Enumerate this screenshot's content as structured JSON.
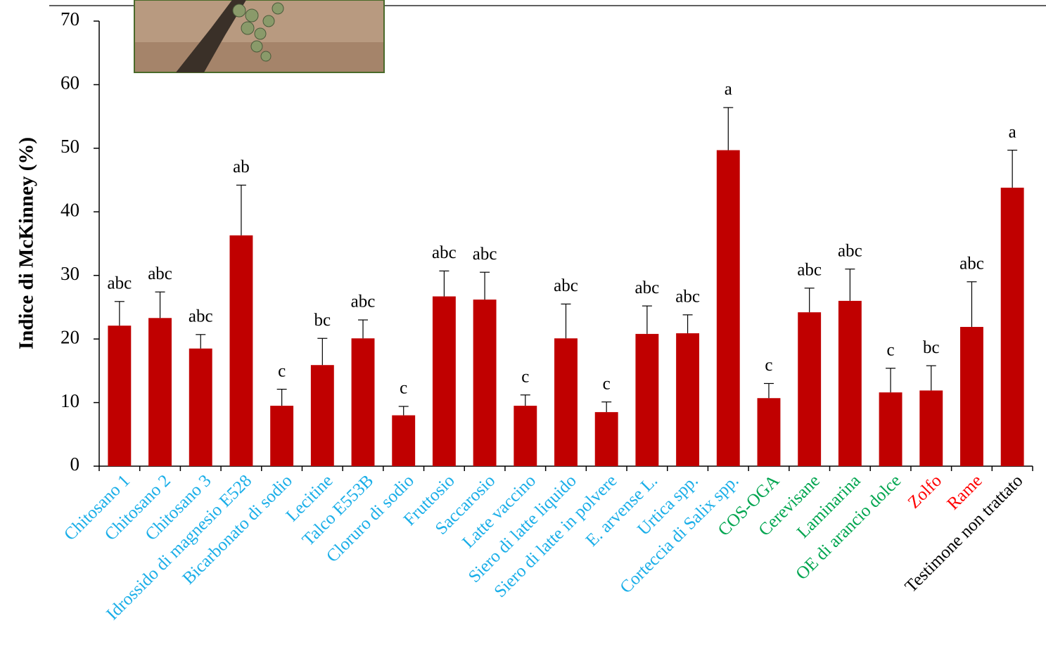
{
  "chart_data": {
    "type": "bar",
    "y_label": "Indice di McKinney (%)",
    "categories": [
      "Chitosano 1",
      "Chitosano 2",
      "Chitosano 3",
      "Idrossido di magnesio E528",
      "Bicarbonato di sodio",
      "Lecitine",
      "Talco E553B",
      "Cloruro di sodio",
      "Fruttosio",
      "Saccarosio",
      "Latte vaccino",
      "Siero di latte liquido",
      "Siero di latte in polvere",
      "E. arvense L.",
      "Urtica spp.",
      "Corteccia di Salix spp.",
      "COS-OGA",
      "Cerevisane",
      "Laminarina",
      "OE di arancio dolce",
      "Zolfo",
      "Rame",
      "Testimone non trattato"
    ],
    "label_colors": [
      "#1aaee8",
      "#1aaee8",
      "#1aaee8",
      "#1aaee8",
      "#1aaee8",
      "#1aaee8",
      "#1aaee8",
      "#1aaee8",
      "#1aaee8",
      "#1aaee8",
      "#1aaee8",
      "#1aaee8",
      "#1aaee8",
      "#1aaee8",
      "#1aaee8",
      "#1aaee8",
      "#00a550",
      "#00a550",
      "#00a550",
      "#00a550",
      "#ff0000",
      "#ff0000",
      "#000000"
    ],
    "values": [
      22.1,
      23.3,
      18.5,
      36.3,
      9.5,
      15.9,
      20.1,
      8.0,
      26.7,
      26.2,
      9.5,
      20.1,
      8.5,
      20.8,
      20.9,
      49.7,
      10.7,
      24.2,
      26.0,
      11.6,
      11.9,
      21.9,
      43.8
    ],
    "errors": [
      3.8,
      4.1,
      2.2,
      7.9,
      2.6,
      4.2,
      2.9,
      1.4,
      4.0,
      4.3,
      1.7,
      5.4,
      1.6,
      4.4,
      2.9,
      6.7,
      2.3,
      3.8,
      5.0,
      3.8,
      3.9,
      7.1,
      5.9
    ],
    "significance": [
      "abc",
      "abc",
      "abc",
      "ab",
      "c",
      "bc",
      "abc",
      "c",
      "abc",
      "abc",
      "c",
      "abc",
      "c",
      "abc",
      "abc",
      "a",
      "c",
      "abc",
      "abc",
      "c",
      "bc",
      "abc",
      "a"
    ],
    "color": "#c00000",
    "ylim": [
      0,
      70
    ],
    "yticks": [
      0,
      10,
      20,
      30,
      40,
      50,
      60,
      70
    ]
  }
}
